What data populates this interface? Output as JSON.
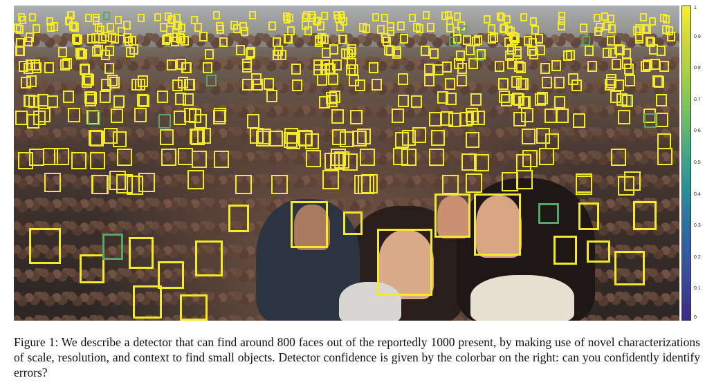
{
  "figure": {
    "caption": "Figure 1:  We describe a detector that can find around 800 faces out of the reportedly 1000 present, by making use of novel characterizations of scale, resolution, and context to find small objects. Detector confidence is given by the colorbar on the right: can you confidently identify errors?",
    "image_description_icon": "crowd-selfie-photo",
    "box_color_high": "#f4ea2a",
    "box_color_low": "#5aa56a"
  },
  "colorbar": {
    "ticks": [
      "1",
      "0.9",
      "0.8",
      "0.7",
      "0.6",
      "0.5",
      "0.4",
      "0.3",
      "0.2",
      "0.1",
      "0"
    ],
    "range": [
      0,
      1
    ]
  }
}
